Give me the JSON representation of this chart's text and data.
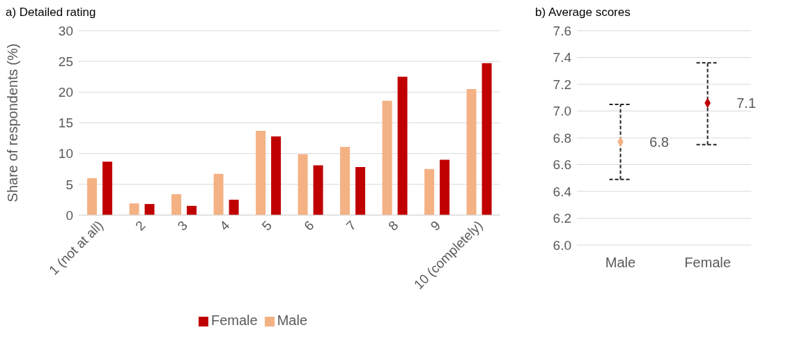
{
  "chart_data": [
    {
      "type": "bar",
      "title": "a) Detailed rating",
      "ylabel": "Share of respondents (%)",
      "categories": [
        "1 (not at all)",
        "2",
        "3",
        "4",
        "5",
        "6",
        "7",
        "8",
        "9",
        "10 (completely)"
      ],
      "series": [
        {
          "name": "Male",
          "color": "#f4b183",
          "values": [
            6.0,
            1.9,
            3.4,
            6.7,
            13.7,
            9.9,
            11.1,
            18.6,
            7.5,
            20.5
          ]
        },
        {
          "name": "Female",
          "color": "#c00000",
          "values": [
            8.7,
            1.8,
            1.5,
            2.5,
            12.8,
            8.1,
            7.8,
            22.5,
            9.0,
            24.7
          ]
        }
      ],
      "ylim": [
        0,
        30
      ],
      "yticks": [
        0,
        5,
        10,
        15,
        20,
        25,
        30
      ],
      "grid": "y",
      "legend": "bottom"
    },
    {
      "type": "scatter",
      "title": "b) Average scores",
      "categories": [
        "Male",
        "Female"
      ],
      "values": [
        6.77,
        7.06
      ],
      "colors": [
        "#f4b183",
        "#c00000"
      ],
      "errors": [
        [
          6.49,
          7.05
        ],
        [
          6.75,
          7.36
        ]
      ],
      "value_labels": [
        "6.8",
        "7.1"
      ],
      "marker": "diamond",
      "ylim": [
        6,
        7.6
      ],
      "yticks": [
        {
          "value": 6,
          "label": "6.0"
        },
        {
          "value": 6.2,
          "label": "6.2"
        },
        {
          "value": 6.4,
          "label": "6.4"
        },
        {
          "value": 6.6,
          "label": "6.6"
        },
        {
          "value": 6.8,
          "label": "6.8"
        },
        {
          "value": 7,
          "label": "7.0"
        },
        {
          "value": 7.2,
          "label": "7.2"
        },
        {
          "value": 7.4,
          "label": "7.4"
        },
        {
          "value": 7.6,
          "label": "7.6"
        }
      ],
      "grid": "y"
    }
  ]
}
